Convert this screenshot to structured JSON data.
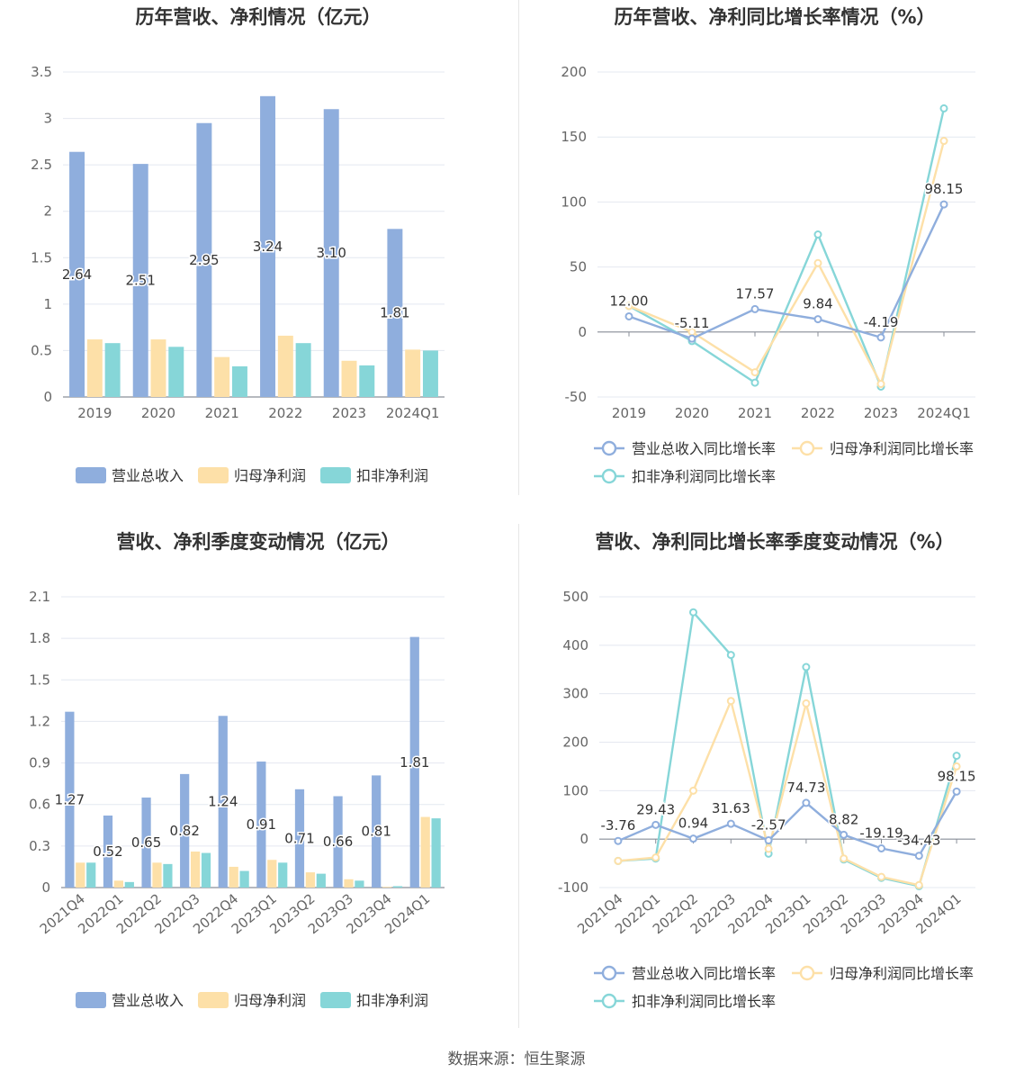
{
  "source": "数据来源：恒生聚源",
  "charts": [
    {
      "id": "annual_bar",
      "type": "bar",
      "title": "历年营收、净利情况（亿元）",
      "categories": [
        "2019",
        "2020",
        "2021",
        "2022",
        "2023",
        "2024Q1"
      ],
      "yticks": [
        0,
        0.5,
        1,
        1.5,
        2,
        2.5,
        3,
        3.5
      ],
      "ylim": [
        0,
        3.5
      ],
      "label_series": 0,
      "series": [
        {
          "name": "营业总收入",
          "color": "#8faedd",
          "values": [
            2.64,
            2.51,
            2.95,
            3.24,
            3.1,
            1.81
          ],
          "labels": [
            "2.64",
            "2.51",
            "2.95",
            "3.24",
            "3.10",
            "1.81"
          ]
        },
        {
          "name": "归母净利润",
          "color": "#fde0a8",
          "values": [
            0.62,
            0.62,
            0.43,
            0.66,
            0.39,
            0.51
          ]
        },
        {
          "name": "扣非净利润",
          "color": "#86d6d8",
          "values": [
            0.58,
            0.54,
            0.33,
            0.58,
            0.34,
            0.5
          ]
        }
      ]
    },
    {
      "id": "annual_line",
      "type": "line",
      "title": "历年营收、净利同比增长率情况（%）",
      "categories": [
        "2019",
        "2020",
        "2021",
        "2022",
        "2023",
        "2024Q1"
      ],
      "yticks": [
        -50,
        0,
        50,
        100,
        150,
        200
      ],
      "ylim": [
        -50,
        200
      ],
      "label_series": 0,
      "series": [
        {
          "name": "营业总收入同比增长率",
          "color": "#8faedd",
          "values": [
            12.0,
            -5.11,
            17.57,
            9.84,
            -4.19,
            98.15
          ],
          "labels": [
            "12.00",
            "-5.11",
            "17.57",
            "9.84",
            "-4.19",
            "98.15"
          ]
        },
        {
          "name": "归母净利润同比增长率",
          "color": "#fde0a8",
          "values": [
            20,
            0,
            -31,
            53,
            -40,
            147
          ]
        },
        {
          "name": "扣非净利润同比增长率",
          "color": "#86d6d8",
          "values": [
            20,
            -7,
            -39,
            75,
            -42,
            172
          ]
        }
      ]
    },
    {
      "id": "quarter_bar",
      "type": "bar",
      "title": "营收、净利季度变动情况（亿元）",
      "categories": [
        "2021Q4",
        "2022Q1",
        "2022Q2",
        "2022Q3",
        "2022Q4",
        "2023Q1",
        "2023Q2",
        "2023Q3",
        "2023Q4",
        "2024Q1"
      ],
      "yticks": [
        0,
        0.3,
        0.6,
        0.9,
        1.2,
        1.5,
        1.8,
        2.1
      ],
      "ylim": [
        0,
        2.1
      ],
      "label_series": 0,
      "series": [
        {
          "name": "营业总收入",
          "color": "#8faedd",
          "values": [
            1.27,
            0.52,
            0.65,
            0.82,
            1.24,
            0.91,
            0.71,
            0.66,
            0.81,
            1.81
          ],
          "labels": [
            "1.27",
            "0.52",
            "0.65",
            "0.82",
            "1.24",
            "0.91",
            "0.71",
            "0.66",
            "0.81",
            "1.81"
          ]
        },
        {
          "name": "归母净利润",
          "color": "#fde0a8",
          "values": [
            0.18,
            0.05,
            0.18,
            0.26,
            0.15,
            0.2,
            0.11,
            0.06,
            0.005,
            0.51
          ]
        },
        {
          "name": "扣非净利润",
          "color": "#86d6d8",
          "values": [
            0.18,
            0.04,
            0.17,
            0.25,
            0.12,
            0.18,
            0.1,
            0.05,
            0.01,
            0.5
          ]
        }
      ]
    },
    {
      "id": "quarter_line",
      "type": "line",
      "title": "营收、净利同比增长率季度变动情况（%）",
      "categories": [
        "2021Q4",
        "2022Q1",
        "2022Q2",
        "2022Q3",
        "2022Q4",
        "2023Q1",
        "2023Q2",
        "2023Q3",
        "2023Q4",
        "2024Q1"
      ],
      "yticks": [
        -100,
        0,
        100,
        200,
        300,
        400,
        500
      ],
      "ylim": [
        -100,
        500
      ],
      "label_series": 0,
      "series": [
        {
          "name": "营业总收入同比增长率",
          "color": "#8faedd",
          "values": [
            -3.76,
            29.43,
            0.94,
            31.63,
            -2.57,
            74.73,
            8.82,
            -19.19,
            -34.43,
            98.15
          ],
          "labels": [
            "-3.76",
            "29.43",
            "0.94",
            "31.63",
            "-2.57",
            "74.73",
            "8.82",
            "-19.19",
            "-34.43",
            "98.15"
          ]
        },
        {
          "name": "归母净利润同比增长率",
          "color": "#fde0a8",
          "values": [
            -45,
            -38,
            100,
            285,
            -20,
            280,
            -40,
            -78,
            -95,
            150
          ]
        },
        {
          "name": "扣非净利润同比增长率",
          "color": "#86d6d8",
          "values": [
            -45,
            -40,
            468,
            380,
            -30,
            355,
            -42,
            -80,
            -97,
            172
          ]
        }
      ]
    }
  ]
}
